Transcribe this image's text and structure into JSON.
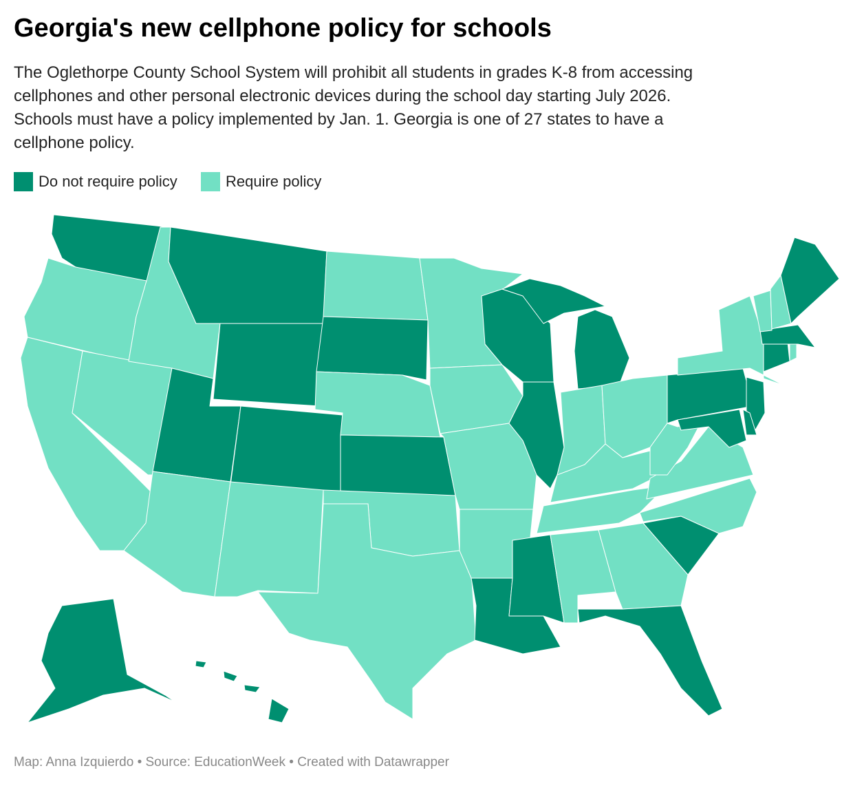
{
  "map": {
    "title": "Georgia's new cellphone policy for schools",
    "subtitle": [
      "The Oglethorpe County School System will prohibit all students in grades K-8 from accessing",
      "cellphones and other personal electronic devices during the school day starting July 2026.",
      "Schools must have a policy implemented by Jan. 1. Georgia is one of 27 states to have a",
      "cellphone policy."
    ],
    "legend": [
      {
        "label": "Do not require policy",
        "color": "#008f70"
      },
      {
        "label": "Require policy",
        "color": "#72e0c4"
      }
    ],
    "regions": [
      0,
      1,
      1,
      1,
      1,
      0,
      0,
      0,
      0,
      1,
      1,
      1,
      0,
      1,
      0,
      1,
      1,
      1,
      1,
      1,
      1,
      0,
      0,
      0,
      0,
      0,
      1,
      1,
      1,
      1,
      0,
      1,
      1,
      0,
      0,
      1,
      1,
      1,
      0,
      1,
      0,
      0,
      0,
      0,
      1,
      0,
      1,
      1,
      0,
      0,
      0,
      0,
      0,
      0
    ],
    "footer": "Map: Anna Izquierdo • Source: EducationWeek • Created with Datawrapper"
  }
}
